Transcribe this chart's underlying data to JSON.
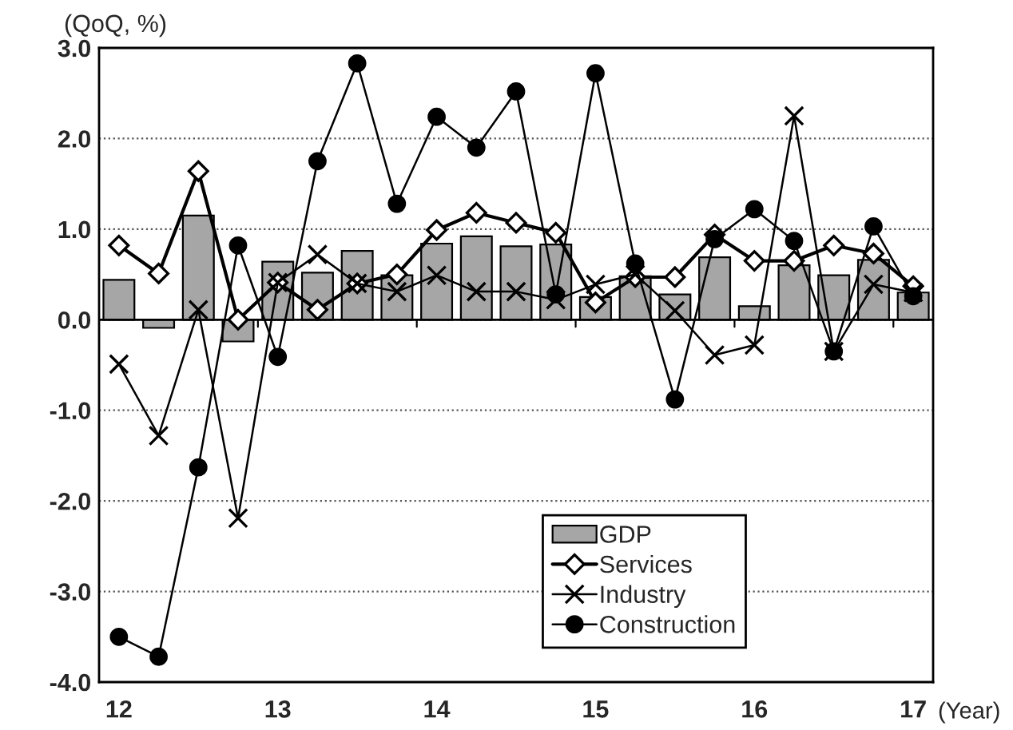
{
  "chart_data": {
    "type": "bar",
    "ylabel": "(QoQ, %)",
    "xlabel": "(Year)",
    "categories": [
      "12",
      null,
      null,
      null,
      "13",
      null,
      null,
      null,
      "14",
      null,
      null,
      null,
      "15",
      null,
      null,
      null,
      "16",
      null,
      null,
      null,
      "17"
    ],
    "series": [
      {
        "name": "GDP",
        "color": "#a6a6a6",
        "values": [
          0.44,
          -0.09,
          1.15,
          -0.24,
          0.64,
          0.52,
          0.76,
          0.49,
          0.84,
          0.92,
          0.81,
          0.83,
          0.25,
          0.48,
          0.28,
          0.69,
          0.15,
          0.6,
          0.49,
          0.66,
          0.3
        ]
      },
      {
        "name": "Services",
        "type": "line",
        "marker": "diamond",
        "color": "#000000",
        "values": [
          0.82,
          0.51,
          1.64,
          0.0,
          0.41,
          0.11,
          0.4,
          0.5,
          0.99,
          1.18,
          1.07,
          0.96,
          0.19,
          0.47,
          0.47,
          0.94,
          0.65,
          0.65,
          0.82,
          0.73,
          0.37
        ]
      },
      {
        "name": "Industry",
        "type": "line",
        "marker": "cross",
        "color": "#000000",
        "values": [
          -0.49,
          -1.28,
          0.11,
          -2.19,
          0.41,
          0.72,
          0.4,
          0.31,
          0.49,
          0.31,
          0.31,
          0.22,
          0.39,
          0.5,
          0.1,
          -0.39,
          -0.28,
          2.25,
          -0.35,
          0.39,
          0.3
        ]
      },
      {
        "name": "Construction",
        "type": "line",
        "marker": "circle",
        "color": "#000000",
        "values": [
          -3.5,
          -3.72,
          -1.63,
          0.82,
          -0.41,
          1.75,
          2.83,
          1.28,
          2.24,
          1.9,
          2.52,
          0.28,
          2.72,
          0.62,
          -0.88,
          0.89,
          1.22,
          0.87,
          -0.35,
          1.03,
          0.26
        ]
      }
    ],
    "ylim": [
      -4,
      3
    ],
    "yticks": [
      {
        "value": -4,
        "label": "-4.0"
      },
      {
        "value": -3,
        "label": "-3.0"
      },
      {
        "value": -2,
        "label": "-2.0"
      },
      {
        "value": -1,
        "label": "-1.0"
      },
      {
        "value": 0,
        "label": "0.0"
      },
      {
        "value": 1,
        "label": "1.0"
      },
      {
        "value": 2,
        "label": "2.0"
      },
      {
        "value": 3,
        "label": "3.0"
      }
    ],
    "grid": "y",
    "legend": "bottom right",
    "line_style": "solid"
  }
}
